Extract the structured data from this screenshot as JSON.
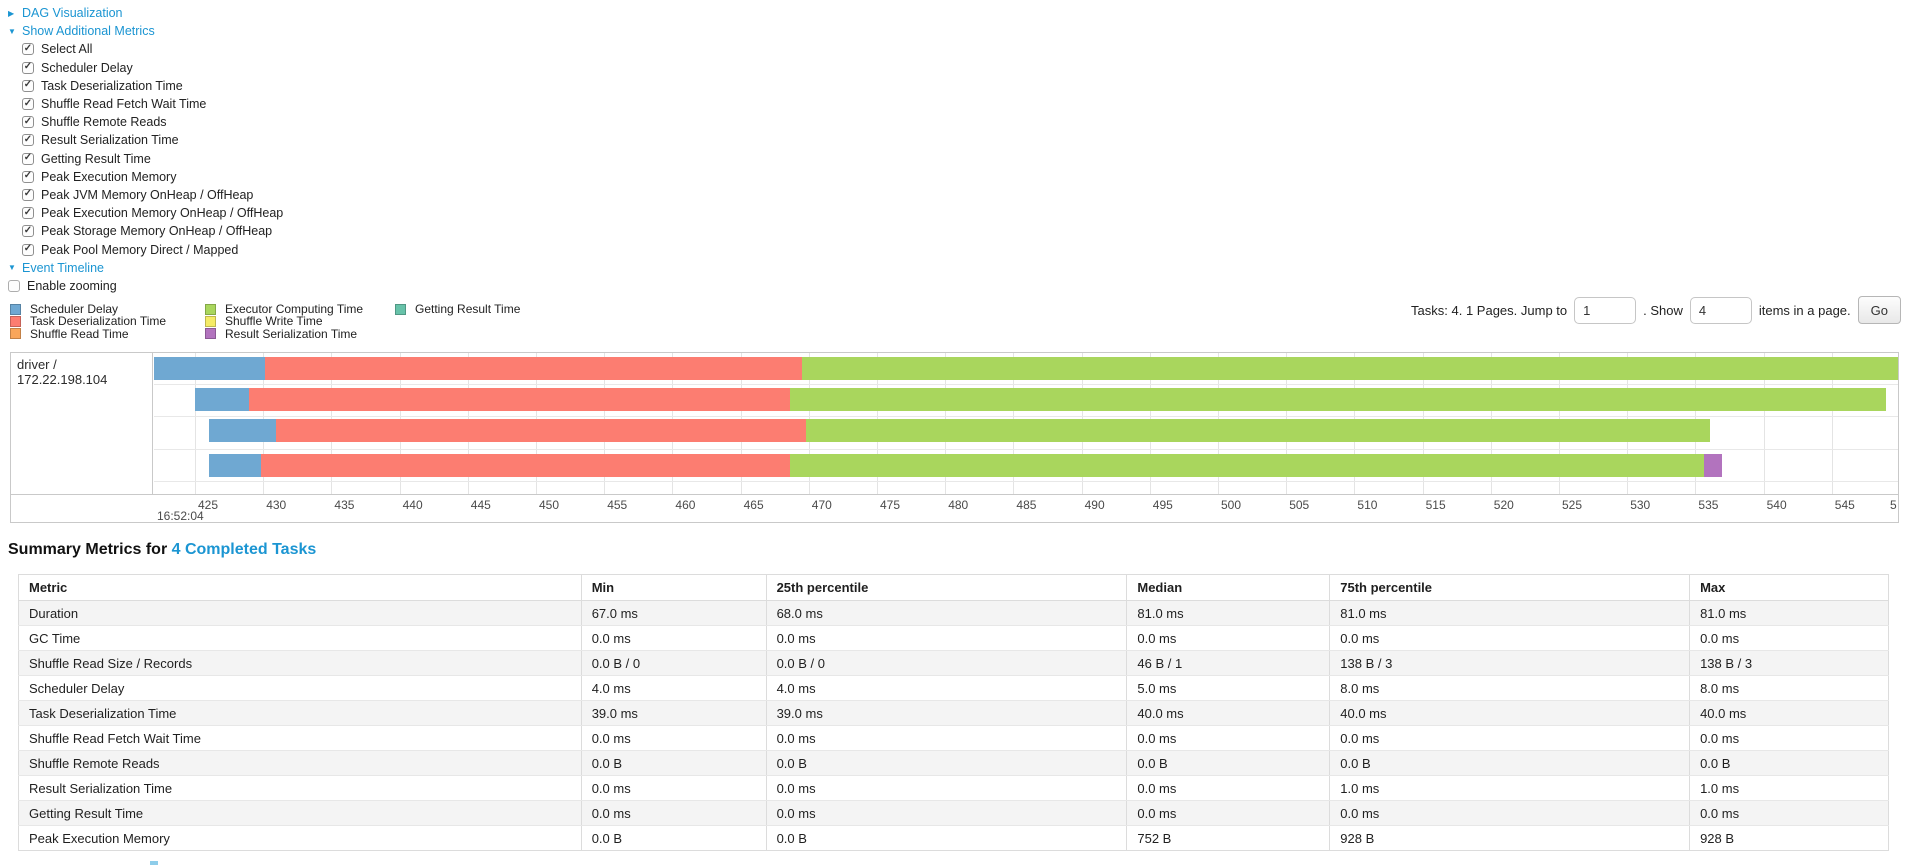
{
  "colors": {
    "link": "#1b95d2",
    "scheduler_delay": "#6FA8D2",
    "task_deserialization": "#FC7D71",
    "shuffle_read": "#F9A65B",
    "executor_computing": "#A9D65D",
    "shuffle_write": "#F5EB67",
    "result_serialization": "#B273BE",
    "getting_result": "#67C2A9"
  },
  "toggles": {
    "dag_label": "DAG Visualization",
    "metrics_label": "Show Additional Metrics",
    "timeline_label": "Event Timeline",
    "enable_zooming_label": "Enable zooming",
    "metric_checkboxes": [
      {
        "label": "Select All",
        "checked": true
      },
      {
        "label": "Scheduler Delay",
        "checked": true
      },
      {
        "label": "Task Deserialization Time",
        "checked": true
      },
      {
        "label": "Shuffle Read Fetch Wait Time",
        "checked": true
      },
      {
        "label": "Shuffle Remote Reads",
        "checked": true
      },
      {
        "label": "Result Serialization Time",
        "checked": true
      },
      {
        "label": "Getting Result Time",
        "checked": true
      },
      {
        "label": "Peak Execution Memory",
        "checked": true
      },
      {
        "label": "Peak JVM Memory OnHeap / OffHeap",
        "checked": true
      },
      {
        "label": "Peak Execution Memory OnHeap / OffHeap",
        "checked": true
      },
      {
        "label": "Peak Storage Memory OnHeap / OffHeap",
        "checked": true
      },
      {
        "label": "Peak Pool Memory Direct / Mapped",
        "checked": true
      }
    ],
    "enable_zooming_checked": false
  },
  "legend": {
    "columns": [
      [
        {
          "label": "Scheduler Delay",
          "color_key": "scheduler_delay"
        },
        {
          "label": "Task Deserialization Time",
          "color_key": "task_deserialization"
        },
        {
          "label": "Shuffle Read Time",
          "color_key": "shuffle_read"
        }
      ],
      [
        {
          "label": "Executor Computing Time",
          "color_key": "executor_computing"
        },
        {
          "label": "Shuffle Write Time",
          "color_key": "shuffle_write"
        },
        {
          "label": "Result Serialization Time",
          "color_key": "result_serialization"
        }
      ],
      [
        {
          "label": "Getting Result Time",
          "color_key": "getting_result"
        }
      ]
    ]
  },
  "pagination": {
    "tasks_text": "Tasks: 4. 1 Pages. Jump to",
    "jump_value": "1",
    "show_text": ". Show",
    "show_value": "4",
    "items_text": "items in a page.",
    "go_label": "Go"
  },
  "timeline": {
    "type": "gantt-timeline",
    "group_label": "driver / 172.22.198.104",
    "axis": {
      "major_label": "16:52:04",
      "unit": "ms",
      "ticks": [
        "425",
        "430",
        "435",
        "440",
        "445",
        "450",
        "455",
        "460",
        "465",
        "470",
        "475",
        "480",
        "485",
        "490",
        "495",
        "500",
        "505",
        "510",
        "515",
        "520",
        "525",
        "530",
        "535",
        "540",
        "545",
        "5"
      ]
    },
    "bars": [
      {
        "segments": [
          {
            "color": "scheduler_delay",
            "start_pct": 0,
            "width_pct": 6.35
          },
          {
            "color": "task_deserialization",
            "start_pct": 6.35,
            "width_pct": 30.8
          },
          {
            "color": "executor_computing",
            "start_pct": 37.15,
            "width_pct": 62.85
          }
        ]
      },
      {
        "segments": [
          {
            "color": "scheduler_delay",
            "start_pct": 2.35,
            "width_pct": 3.09
          },
          {
            "color": "task_deserialization",
            "start_pct": 5.44,
            "width_pct": 31.02
          },
          {
            "color": "executor_computing",
            "start_pct": 36.46,
            "width_pct": 62.85
          }
        ]
      },
      {
        "segments": [
          {
            "color": "scheduler_delay",
            "start_pct": 3.15,
            "width_pct": 3.84
          },
          {
            "color": "task_deserialization",
            "start_pct": 6.99,
            "width_pct": 30.39
          },
          {
            "color": "executor_computing",
            "start_pct": 37.38,
            "width_pct": 51.86
          }
        ]
      },
      {
        "segments": [
          {
            "color": "scheduler_delay",
            "start_pct": 3.15,
            "width_pct": 2.98
          },
          {
            "color": "task_deserialization",
            "start_pct": 6.13,
            "width_pct": 30.33
          },
          {
            "color": "executor_computing",
            "start_pct": 36.46,
            "width_pct": 52.44
          },
          {
            "color": "result_serialization",
            "start_pct": 88.9,
            "width_pct": 1.03
          }
        ]
      }
    ]
  },
  "summary": {
    "title_prefix": "Summary Metrics for",
    "title_link": "4 Completed Tasks",
    "columns": [
      "Metric",
      "Min",
      "25th percentile",
      "Median",
      "75th percentile",
      "Max"
    ],
    "rows": [
      [
        "Duration",
        "67.0 ms",
        "68.0 ms",
        "81.0 ms",
        "81.0 ms",
        "81.0 ms"
      ],
      [
        "GC Time",
        "0.0 ms",
        "0.0 ms",
        "0.0 ms",
        "0.0 ms",
        "0.0 ms"
      ],
      [
        "Shuffle Read Size / Records",
        "0.0 B / 0",
        "0.0 B / 0",
        "46 B / 1",
        "138 B / 3",
        "138 B / 3"
      ],
      [
        "Scheduler Delay",
        "4.0 ms",
        "4.0 ms",
        "5.0 ms",
        "8.0 ms",
        "8.0 ms"
      ],
      [
        "Task Deserialization Time",
        "39.0 ms",
        "39.0 ms",
        "40.0 ms",
        "40.0 ms",
        "40.0 ms"
      ],
      [
        "Shuffle Read Fetch Wait Time",
        "0.0 ms",
        "0.0 ms",
        "0.0 ms",
        "0.0 ms",
        "0.0 ms"
      ],
      [
        "Shuffle Remote Reads",
        "0.0 B",
        "0.0 B",
        "0.0 B",
        "0.0 B",
        "0.0 B"
      ],
      [
        "Result Serialization Time",
        "0.0 ms",
        "0.0 ms",
        "0.0 ms",
        "1.0 ms",
        "1.0 ms"
      ],
      [
        "Getting Result Time",
        "0.0 ms",
        "0.0 ms",
        "0.0 ms",
        "0.0 ms",
        "0.0 ms"
      ],
      [
        "Peak Execution Memory",
        "0.0 B",
        "0.0 B",
        "752 B",
        "928 B",
        "928 B"
      ]
    ]
  }
}
